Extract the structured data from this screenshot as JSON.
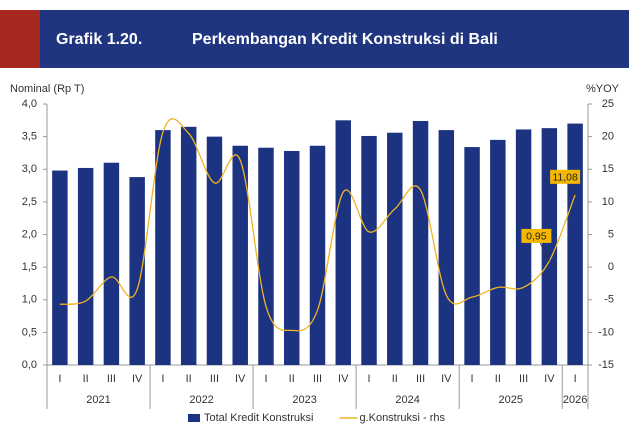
{
  "chart_data": {
    "type": "bar",
    "figure_label": "Grafik 1.20.",
    "title": "Perkembangan Kredit Konstruksi di Bali",
    "y_label": "Nominal (Rp T)",
    "y2_label": "%YOY",
    "categories": [
      "I",
      "II",
      "III",
      "IV",
      "I",
      "II",
      "III",
      "IV",
      "I",
      "II",
      "III",
      "IV",
      "I",
      "II",
      "III",
      "IV",
      "I",
      "II",
      "III",
      "IV",
      "I"
    ],
    "groups": [
      "2021",
      "2022",
      "2023",
      "2024",
      "2025",
      "2026"
    ],
    "series": [
      {
        "name": "Total Kredit Konstruksi",
        "type": "bar",
        "color": "#1c3381",
        "values": [
          2.98,
          3.02,
          3.1,
          2.88,
          3.6,
          3.65,
          3.5,
          3.36,
          3.33,
          3.28,
          3.36,
          3.75,
          3.51,
          3.56,
          3.74,
          3.6,
          3.34,
          3.45,
          3.61,
          3.63,
          3.7
        ]
      },
      {
        "name": "g.Konstruksi - rhs",
        "type": "line",
        "axis": "y2",
        "color": "#f0b323",
        "values": [
          -5.7,
          -5.2,
          -1.5,
          -3.4,
          20.7,
          20.5,
          12.9,
          16.4,
          -6.0,
          -9.7,
          -6.6,
          11.5,
          5.4,
          8.9,
          11.8,
          -4.3,
          -4.6,
          -3.1,
          -3.1,
          0.95,
          11.08
        ],
        "value_labels": [
          null,
          null,
          null,
          null,
          null,
          null,
          null,
          null,
          null,
          null,
          null,
          null,
          null,
          null,
          null,
          null,
          null,
          null,
          null,
          "0,95",
          "11,08"
        ]
      }
    ],
    "ylim": [
      0,
      4
    ],
    "yticks": [
      {
        "value": 0,
        "label": "0,0"
      },
      {
        "value": 0.5,
        "label": "0,5"
      },
      {
        "value": 1,
        "label": "1,0"
      },
      {
        "value": 1.5,
        "label": "1,5"
      },
      {
        "value": 2,
        "label": "2,0"
      },
      {
        "value": 2.5,
        "label": "2,5"
      },
      {
        "value": 3,
        "label": "3,0"
      },
      {
        "value": 3.5,
        "label": "3,5"
      },
      {
        "value": 4,
        "label": "4,0"
      }
    ],
    "y2lim": [
      -15,
      25
    ],
    "y2ticks": [
      -15,
      -10,
      -5,
      0,
      5,
      10,
      15,
      20,
      25
    ],
    "legend": "bottom",
    "grid": false
  }
}
